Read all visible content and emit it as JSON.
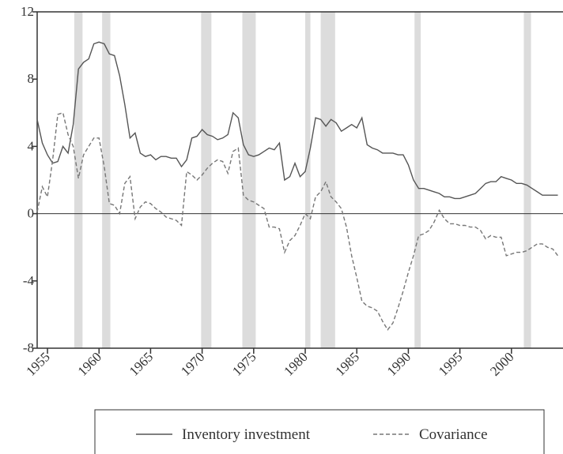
{
  "chart_data": {
    "type": "line",
    "x": [
      1954,
      1954.5,
      1955,
      1955.5,
      1956,
      1956.5,
      1957,
      1957.5,
      1958,
      1958.5,
      1959,
      1959.5,
      1960,
      1960.5,
      1961,
      1961.5,
      1962,
      1962.5,
      1963,
      1963.5,
      1964,
      1964.5,
      1965,
      1965.5,
      1966,
      1966.5,
      1967,
      1967.5,
      1968,
      1968.5,
      1969,
      1969.5,
      1970,
      1970.5,
      1971,
      1971.5,
      1972,
      1972.5,
      1973,
      1973.5,
      1974,
      1974.5,
      1975,
      1975.5,
      1976,
      1976.5,
      1977,
      1977.5,
      1978,
      1978.5,
      1979,
      1979.5,
      1980,
      1980.5,
      1981,
      1981.5,
      1982,
      1982.5,
      1983,
      1983.5,
      1984,
      1984.5,
      1985,
      1985.5,
      1986,
      1986.5,
      1987,
      1987.5,
      1988,
      1988.5,
      1989,
      1989.5,
      1990,
      1990.5,
      1991,
      1991.5,
      1992,
      1992.5,
      1993,
      1993.5,
      1994,
      1994.5,
      1995,
      1995.5,
      1996,
      1996.5,
      1997,
      1997.5,
      1998,
      1998.5,
      1999,
      1999.5,
      2000,
      2000.5,
      2001,
      2001.5,
      2002,
      2002.5,
      2003,
      2003.5,
      2004,
      2004.5
    ],
    "series": [
      {
        "name": "Inventory investment",
        "color": "#555555",
        "dash": false,
        "values": [
          5.6,
          4.2,
          3.5,
          3.0,
          3.1,
          4.0,
          3.6,
          5.3,
          8.6,
          9.0,
          9.2,
          10.1,
          10.2,
          10.1,
          9.5,
          9.4,
          8.2,
          6.5,
          4.5,
          4.8,
          3.6,
          3.4,
          3.5,
          3.2,
          3.4,
          3.4,
          3.3,
          3.3,
          2.8,
          3.2,
          4.5,
          4.6,
          5.0,
          4.7,
          4.6,
          4.4,
          4.5,
          4.7,
          6.0,
          5.7,
          4.1,
          3.5,
          3.4,
          3.5,
          3.7,
          3.9,
          3.8,
          4.2,
          2.0,
          2.2,
          3.0,
          2.2,
          2.5,
          3.9,
          5.7,
          5.6,
          5.2,
          5.6,
          5.4,
          4.9,
          5.1,
          5.3,
          5.1,
          5.7,
          4.1,
          3.9,
          3.8,
          3.6,
          3.6,
          3.6,
          3.5,
          3.5,
          2.9,
          2.0,
          1.5,
          1.5,
          1.4,
          1.3,
          1.2,
          1.0,
          1.0,
          0.9,
          0.9,
          1.0,
          1.1,
          1.2,
          1.5,
          1.8,
          1.9,
          1.9,
          2.2,
          2.1,
          2.0,
          1.8,
          1.8,
          1.7,
          1.5,
          1.3,
          1.1,
          1.1,
          1.1,
          1.1
        ]
      },
      {
        "name": "Covariance",
        "color": "#777777",
        "dash": true,
        "values": [
          0.1,
          1.6,
          1.0,
          3.2,
          5.9,
          6.0,
          4.7,
          4.0,
          2.1,
          3.5,
          4.0,
          4.5,
          4.5,
          2.8,
          0.6,
          0.5,
          0.0,
          1.8,
          2.2,
          -0.3,
          0.4,
          0.7,
          0.6,
          0.3,
          0.1,
          -0.2,
          -0.3,
          -0.4,
          -0.7,
          2.5,
          2.3,
          2.0,
          2.3,
          2.7,
          3.0,
          3.2,
          3.1,
          2.4,
          3.7,
          3.9,
          1.1,
          0.8,
          0.7,
          0.5,
          0.3,
          -0.8,
          -0.8,
          -0.9,
          -2.3,
          -1.6,
          -1.3,
          -0.7,
          0.0,
          -0.3,
          1.0,
          1.3,
          1.9,
          1.0,
          0.7,
          0.3,
          -0.8,
          -2.5,
          -3.8,
          -5.2,
          -5.5,
          -5.6,
          -5.8,
          -6.4,
          -6.9,
          -6.5,
          -5.6,
          -4.6,
          -3.5,
          -2.5,
          -1.3,
          -1.2,
          -1.0,
          -0.5,
          0.2,
          -0.3,
          -0.6,
          -0.6,
          -0.7,
          -0.7,
          -0.8,
          -0.8,
          -1.0,
          -1.5,
          -1.3,
          -1.4,
          -1.4,
          -2.5,
          -2.4,
          -2.3,
          -2.3,
          -2.2,
          -2.0,
          -1.8,
          -1.8,
          -2.0,
          -2.1,
          -2.5
        ]
      }
    ],
    "recessions": [
      [
        1957.6,
        1958.4
      ],
      [
        1960.3,
        1961.1
      ],
      [
        1969.9,
        1970.9
      ],
      [
        1973.9,
        1975.2
      ],
      [
        1980.0,
        1980.5
      ],
      [
        1981.5,
        1982.9
      ],
      [
        1990.6,
        1991.2
      ],
      [
        2001.2,
        2001.9
      ]
    ],
    "recession_color": "#dcdcdc",
    "xlim": [
      1954,
      2005
    ],
    "xticks": [
      1955,
      1960,
      1965,
      1970,
      1975,
      1980,
      1985,
      1990,
      1995,
      2000
    ],
    "ylim": [
      -8,
      12
    ],
    "yticks": [
      12,
      8,
      4,
      0,
      -4,
      -8
    ]
  }
}
